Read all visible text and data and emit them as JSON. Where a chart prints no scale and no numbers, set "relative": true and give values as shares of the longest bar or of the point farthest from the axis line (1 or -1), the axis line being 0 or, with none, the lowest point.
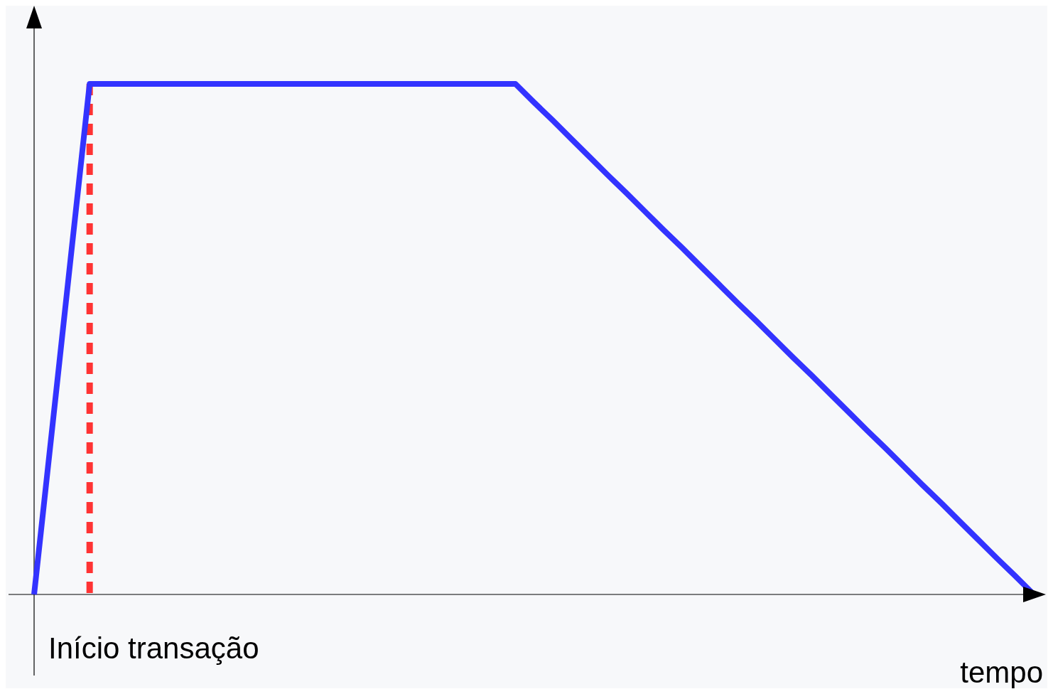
{
  "chart_data": {
    "type": "line",
    "relative": true,
    "xlabel": "tempo",
    "categories": [
      null,
      null,
      null,
      null,
      null,
      null,
      null,
      null,
      null,
      null,
      null,
      null,
      null,
      null,
      null,
      null,
      null,
      null,
      null,
      null,
      null,
      null,
      null,
      null,
      null,
      null,
      null,
      null,
      null,
      null,
      null,
      null,
      null,
      null,
      null,
      null,
      null,
      null,
      null,
      null,
      null,
      null,
      null,
      null,
      null,
      null,
      null,
      null,
      null,
      null,
      null,
      null,
      null,
      null,
      null
    ],
    "series": [
      {
        "color": "#3333ff",
        "line_style": "solid",
        "values": [
          0,
          0.333,
          0.667,
          1,
          1,
          1,
          1,
          1,
          1,
          1,
          1,
          1,
          1,
          1,
          1,
          1,
          1,
          1,
          1,
          1,
          1,
          1,
          1,
          1,
          1,
          1,
          1,
          0.964,
          0.929,
          0.893,
          0.857,
          0.821,
          0.786,
          0.75,
          0.714,
          0.679,
          0.643,
          0.607,
          0.571,
          0.536,
          0.5,
          0.464,
          0.429,
          0.393,
          0.357,
          0.321,
          0.286,
          0.25,
          0.214,
          0.179,
          0.143,
          0.107,
          0.071,
          0.036,
          0
        ]
      }
    ],
    "ref_lines": [
      {
        "axis": "x",
        "label": "Início transação",
        "color": "#ff3333",
        "line_style": "dashed"
      }
    ]
  }
}
